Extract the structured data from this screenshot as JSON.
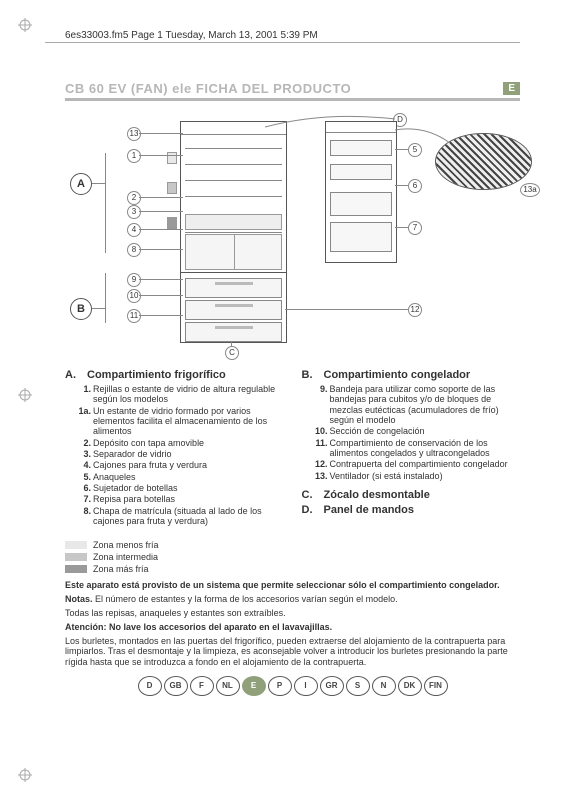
{
  "meta": {
    "header": "6es33003.fm5  Page 1  Tuesday, March 13, 2001  5:39 PM"
  },
  "title": {
    "model": "CB 60 EV (FAN) ele",
    "label": "FICHA DEL PRODUCTO",
    "lang_badge": "E"
  },
  "diagram": {
    "side_labels": {
      "A": "A",
      "B": "B",
      "C": "C",
      "D": "D"
    },
    "callouts_left": [
      "1",
      "2",
      "3",
      "4",
      "8",
      "9",
      "10",
      "11",
      "13"
    ],
    "callouts_right": [
      "5",
      "6",
      "7",
      "12",
      "13a"
    ],
    "shelves_y": [
      26,
      42,
      58,
      74,
      92,
      110,
      128
    ],
    "drawers_y": [
      160,
      182,
      204
    ]
  },
  "sections": {
    "A": {
      "letter": "A.",
      "title": "Compartimiento frigorífico",
      "items": [
        {
          "n": "1.",
          "t": "Rejillas o estante de vidrio de altura regulable según los modelos"
        },
        {
          "n": "1a.",
          "t": "Un estante de vidrio formado por varios elementos facilita el almacenamiento de los alimentos"
        },
        {
          "n": "2.",
          "t": "Depósito con tapa amovible"
        },
        {
          "n": "3.",
          "t": "Separador de vidrio"
        },
        {
          "n": "4.",
          "t": "Cajones para fruta y verdura"
        },
        {
          "n": "5.",
          "t": "Anaqueles"
        },
        {
          "n": "6.",
          "t": "Sujetador de botellas"
        },
        {
          "n": "7.",
          "t": "Repisa para botellas"
        },
        {
          "n": "8.",
          "t": "Chapa de matrícula (situada al lado de los cajones para fruta y verdura)"
        }
      ]
    },
    "B": {
      "letter": "B.",
      "title": "Compartimiento congelador",
      "items": [
        {
          "n": "9.",
          "t": "Bandeja para utilizar como soporte de las bandejas para cubitos y/o de bloques de mezclas eutécticas (acumuladores de frío) según el modelo"
        },
        {
          "n": "10.",
          "t": "Sección de congelación"
        },
        {
          "n": "11.",
          "t": "Compartimiento de conservación de los alimentos congelados y ultracongelados"
        },
        {
          "n": "12.",
          "t": "Contrapuerta del compartimiento congelador"
        },
        {
          "n": "13.",
          "t": "Ventilador (si está instalado)"
        }
      ]
    },
    "C": {
      "letter": "C.",
      "title": "Zócalo desmontable"
    },
    "D": {
      "letter": "D.",
      "title": "Panel de mandos"
    }
  },
  "zones": {
    "items": [
      {
        "label": "Zona menos fría",
        "color": "#e8e8e8"
      },
      {
        "label": "Zona intermedia",
        "color": "#c7c7c7"
      },
      {
        "label": "Zona más fría",
        "color": "#9a9a9a"
      }
    ]
  },
  "notes": {
    "line1_bold": "Este aparato está provisto de un sistema que permite seleccionar sólo el compartimiento congelador.",
    "notas_label": "Notas.",
    "notas_text": " El número de estantes y la forma de los accesorios varían según el modelo.",
    "line3": "Todas las repisas, anaqueles y estantes son extraíbles.",
    "atencion_bold": "Atención: No lave los accesorios del aparato en el lavavajillas.",
    "para": "Los burletes, montados en las puertas del frigorífico, pueden extraerse del alojamiento de la contrapuerta para limpiarlos. Tras el desmontaje y la limpieza, es aconsejable volver a introducir los burletes presionando la parte rígida hasta que se introduzca a fondo en el alojamiento de la contrapuerta."
  },
  "lang_row": [
    "D",
    "GB",
    "F",
    "NL",
    "E",
    "P",
    "I",
    "GR",
    "S",
    "N",
    "DK",
    "FIN"
  ],
  "lang_active": "E",
  "colors": {
    "rule": "#b7b7b7",
    "badge": "#8fa07a"
  }
}
